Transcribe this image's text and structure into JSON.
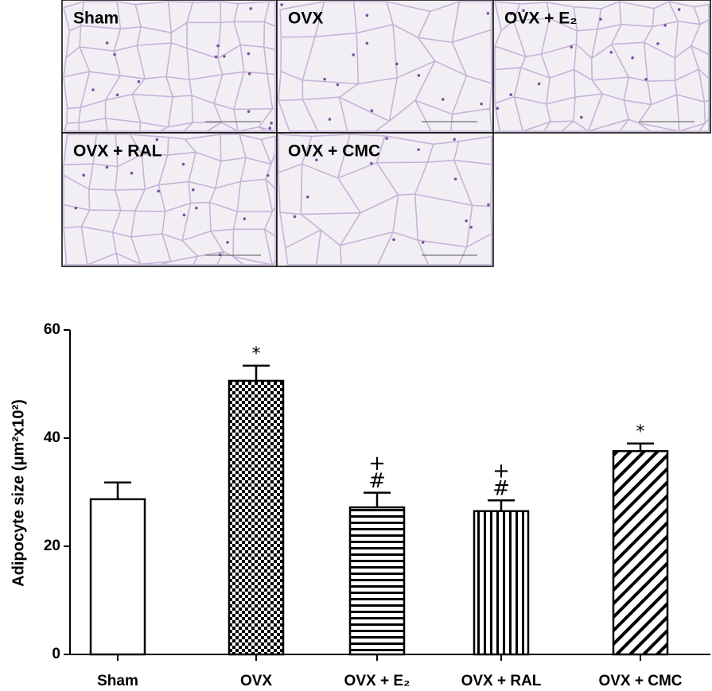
{
  "micrographs": {
    "labels": [
      "Sham",
      "OVX",
      "OVX + E₂",
      "OVX + RAL",
      "OVX + CMC"
    ]
  },
  "chart_data": {
    "type": "bar",
    "ylabel": "Adipocyte size (μm²x10²)",
    "categories": [
      "Sham",
      "OVX",
      "OVX + E₂",
      "OVX + RAL",
      "OVX + CMC"
    ],
    "values": [
      28.7,
      50.6,
      27.2,
      26.5,
      37.6
    ],
    "errors": [
      3.1,
      2.8,
      2.7,
      2.0,
      1.4
    ],
    "patterns": [
      "none",
      "checker",
      "horizontal",
      "vertical",
      "diagonal"
    ],
    "markers": [
      null,
      [
        "*"
      ],
      [
        "+",
        "#"
      ],
      [
        "+",
        "#"
      ],
      [
        "*"
      ]
    ],
    "ylim": [
      0,
      60
    ],
    "yticks": [
      0,
      20,
      40,
      60
    ]
  }
}
